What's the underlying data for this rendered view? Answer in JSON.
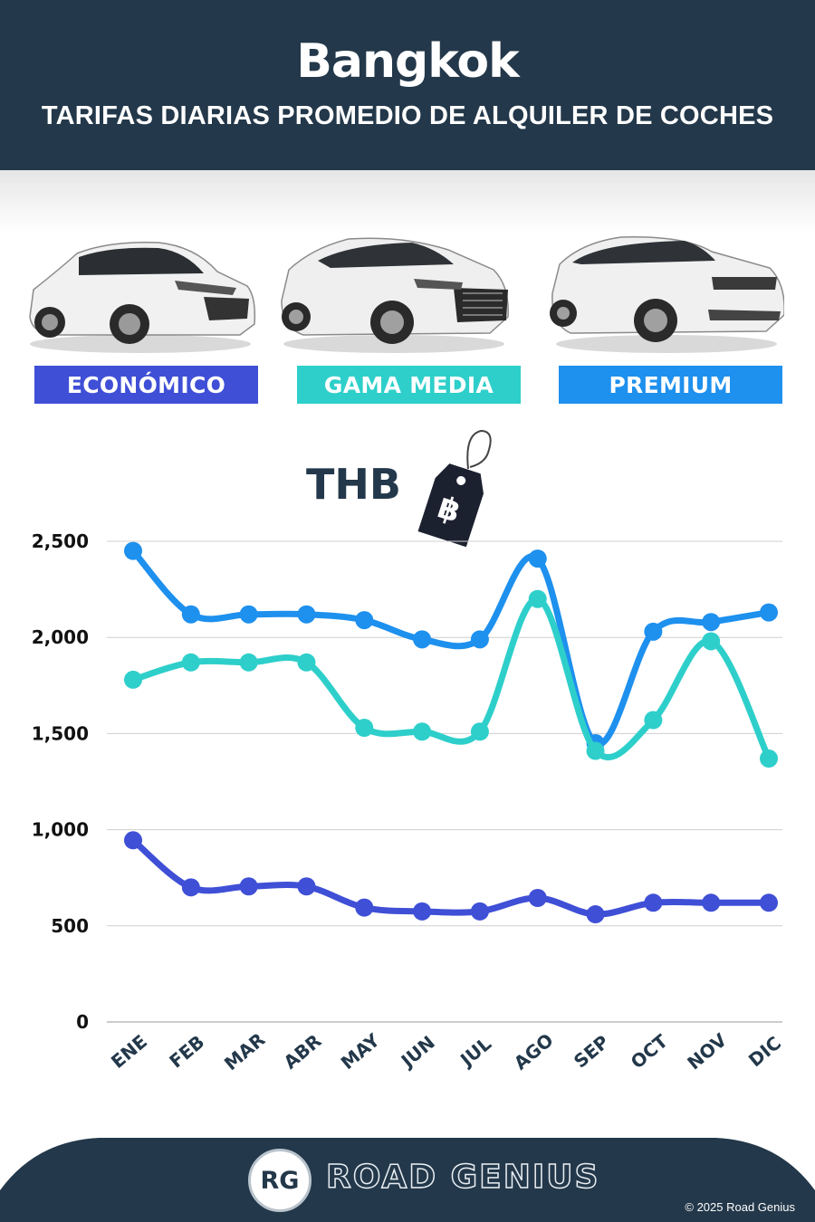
{
  "header": {
    "city": "Bangkok",
    "subtitle": "TARIFAS DIARIAS PROMEDIO DE ALQUILER DE COCHES"
  },
  "categories": [
    {
      "label": "ECONÓMICO",
      "color": "#3f4fd6",
      "icon": "hatchback-car-image"
    },
    {
      "label": "GAMA MEDIA",
      "color": "#2ecfca",
      "icon": "suv-car-image"
    },
    {
      "label": "PREMIUM",
      "color": "#1e90ee",
      "icon": "luxury-suv-car-image"
    }
  ],
  "currency": {
    "label": "THB",
    "icon": "price-tag-icon",
    "symbol": "฿"
  },
  "chart_data": {
    "type": "line",
    "categories": [
      "ENE",
      "FEB",
      "MAR",
      "ABR",
      "MAY",
      "JUN",
      "JUL",
      "AGO",
      "SEP",
      "OCT",
      "NOV",
      "DIC"
    ],
    "series": [
      {
        "name": "PREMIUM",
        "color": "#1e90ee",
        "values": [
          2450,
          2120,
          2120,
          2120,
          2090,
          1990,
          1990,
          2410,
          1450,
          2030,
          2080,
          2130
        ]
      },
      {
        "name": "GAMA MEDIA",
        "color": "#2ecfca",
        "values": [
          1780,
          1870,
          1870,
          1870,
          1530,
          1510,
          1510,
          2200,
          1410,
          1570,
          1980,
          1370
        ]
      },
      {
        "name": "ECONÓMICO",
        "color": "#3f4fd6",
        "values": [
          945,
          700,
          705,
          705,
          595,
          575,
          575,
          645,
          560,
          620,
          620,
          620
        ]
      }
    ],
    "yticks": [
      "0",
      "500",
      "1,000",
      "1,500",
      "2,000",
      "2,500"
    ],
    "ylim": [
      0,
      2500
    ],
    "grid": true,
    "curve": "smooth"
  },
  "footer": {
    "logo": "RG",
    "brand": "ROAD GENIUS",
    "copyright": "© 2025 Road Genius"
  }
}
